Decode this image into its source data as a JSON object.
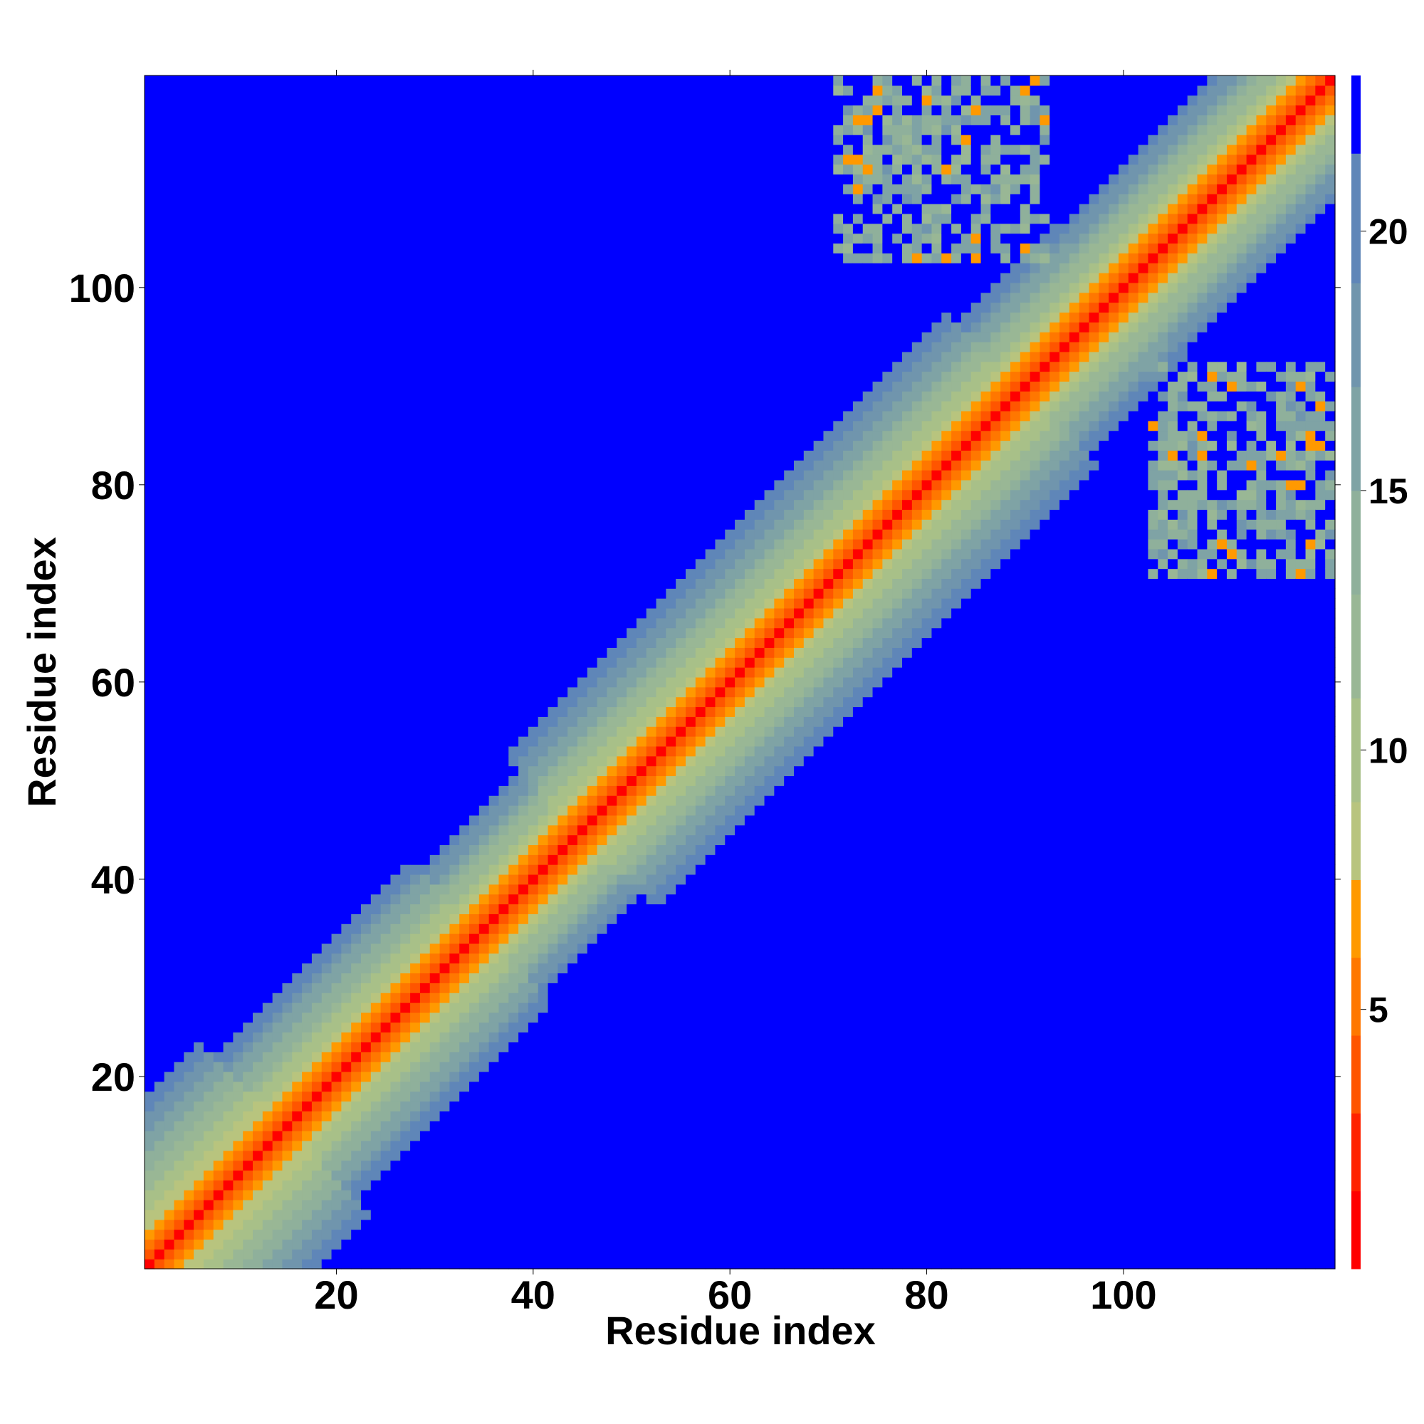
{
  "chart_data": {
    "type": "heatmap",
    "title": "",
    "xlabel": "Residue index",
    "ylabel": "Residue index",
    "n_residues": 121,
    "xlim": [
      0.5,
      121.5
    ],
    "ylim": [
      0.5,
      121.5
    ],
    "x_ticks": [
      20,
      40,
      60,
      80,
      100
    ],
    "y_ticks": [
      20,
      40,
      60,
      80,
      100
    ],
    "colorbar": {
      "range": [
        0,
        23
      ],
      "ticks": [
        5,
        10,
        15,
        20
      ],
      "levels": [
        {
          "from": 0,
          "to": 1.5,
          "color": "#ff0000"
        },
        {
          "from": 1.5,
          "to": 3,
          "color": "#ff2200"
        },
        {
          "from": 3,
          "to": 4.5,
          "color": "#ff5500"
        },
        {
          "from": 4.5,
          "to": 6,
          "color": "#ff7700"
        },
        {
          "from": 6,
          "to": 7.5,
          "color": "#ff9900"
        },
        {
          "from": 7.5,
          "to": 9,
          "color": "#b8c47e"
        },
        {
          "from": 9,
          "to": 11,
          "color": "#a8c088"
        },
        {
          "from": 11,
          "to": 13,
          "color": "#99b795"
        },
        {
          "from": 13,
          "to": 15,
          "color": "#8fb09b"
        },
        {
          "from": 15,
          "to": 17,
          "color": "#7fa3a5"
        },
        {
          "from": 17,
          "to": 19,
          "color": "#7095ad"
        },
        {
          "from": 19,
          "to": 21.5,
          "color": "#5f86b8"
        },
        {
          "from": 21.5,
          "to": 23,
          "color": "#0000ff"
        }
      ]
    },
    "contact_blocks": [
      {
        "x_range": [
          71,
          92
        ],
        "y_range": [
          103,
          121
        ],
        "mean_distance": 16
      },
      {
        "x_range": [
          103,
          121
        ],
        "y_range": [
          71,
          92
        ],
        "mean_distance": 16
      }
    ]
  }
}
